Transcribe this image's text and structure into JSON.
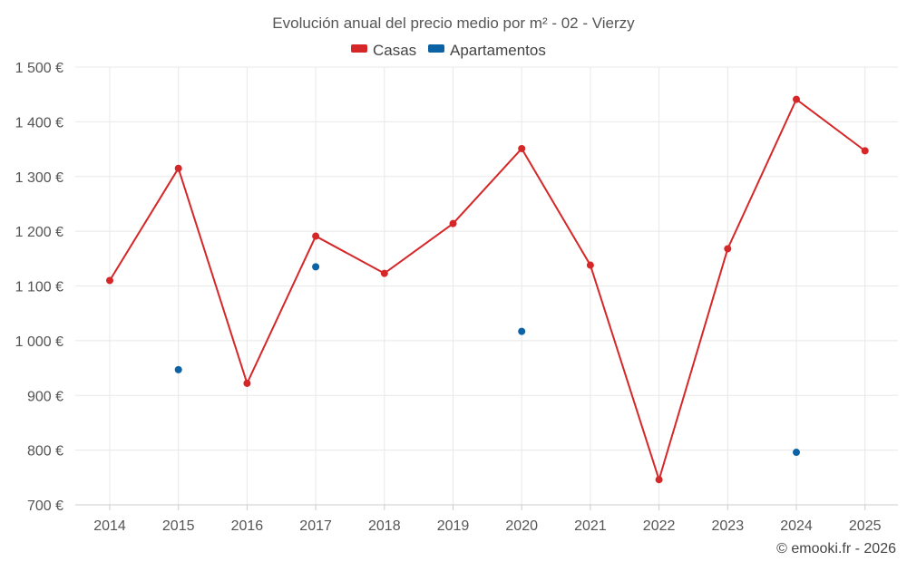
{
  "colors": {
    "casas": "#d62728",
    "apartamentos": "#0b62a4",
    "grid": "#e8e8e8"
  },
  "credit": "© emooki.fr - 2026",
  "chart_data": {
    "type": "line",
    "title": "Evolución anual del precio medio por m² - 02 - Vierzy",
    "xlabel": "",
    "ylabel": "",
    "categories": [
      "2014",
      "2015",
      "2016",
      "2017",
      "2018",
      "2019",
      "2020",
      "2021",
      "2022",
      "2023",
      "2024",
      "2025"
    ],
    "ylim": [
      700,
      1500
    ],
    "yticks": [
      700,
      800,
      900,
      1000,
      1100,
      1200,
      1300,
      1400,
      1500
    ],
    "ytick_labels": [
      "700 €",
      "800 €",
      "900 €",
      "1 000 €",
      "1 100 €",
      "1 200 €",
      "1 300 €",
      "1 400 €",
      "1 500 €"
    ],
    "legend_position": "top-center",
    "grid": true,
    "series": [
      {
        "name": "Casas",
        "color_key": "casas",
        "style": "line",
        "values": [
          1110,
          1315,
          922,
          1191,
          1123,
          1214,
          1351,
          1138,
          746,
          1168,
          1441,
          1347
        ]
      },
      {
        "name": "Apartamentos",
        "color_key": "apartamentos",
        "style": "points",
        "values": [
          null,
          947,
          null,
          1135,
          null,
          null,
          1017,
          null,
          null,
          null,
          796,
          null
        ]
      }
    ]
  }
}
